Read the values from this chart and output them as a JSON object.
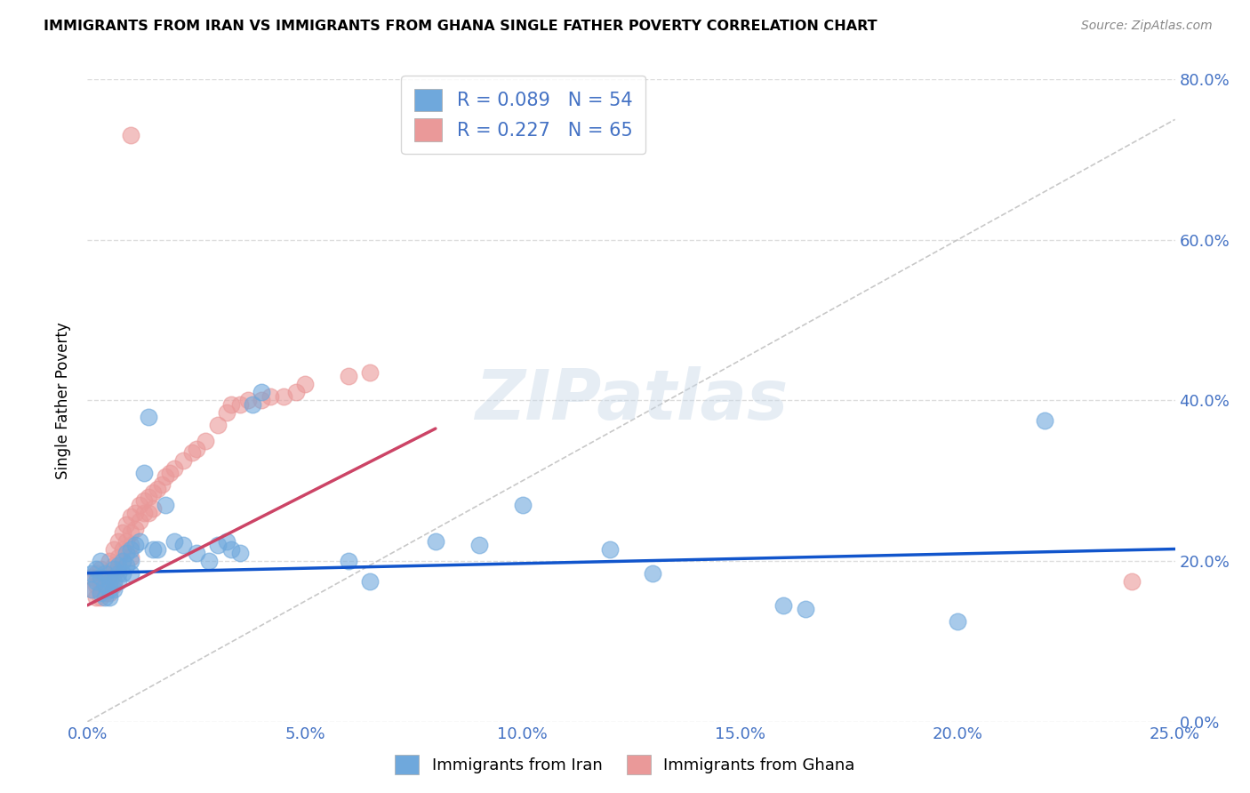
{
  "title": "IMMIGRANTS FROM IRAN VS IMMIGRANTS FROM GHANA SINGLE FATHER POVERTY CORRELATION CHART",
  "source": "Source: ZipAtlas.com",
  "ylabel": "Single Father Poverty",
  "xlim": [
    0,
    0.25
  ],
  "ylim": [
    0,
    0.8
  ],
  "xticks": [
    0.0,
    0.05,
    0.1,
    0.15,
    0.2,
    0.25
  ],
  "yticks": [
    0.0,
    0.2,
    0.4,
    0.6,
    0.8
  ],
  "iran_R": 0.089,
  "iran_N": 54,
  "ghana_R": 0.227,
  "ghana_N": 65,
  "iran_color": "#6fa8dc",
  "ghana_color": "#ea9999",
  "iran_line_color": "#1155cc",
  "ghana_line_color": "#cc4466",
  "ref_line_color": "#bbbbbb",
  "background_color": "#ffffff",
  "grid_color": "#dddddd",
  "iran_x": [
    0.001,
    0.001,
    0.002,
    0.002,
    0.003,
    0.003,
    0.003,
    0.004,
    0.004,
    0.004,
    0.005,
    0.005,
    0.005,
    0.006,
    0.006,
    0.006,
    0.007,
    0.007,
    0.007,
    0.008,
    0.008,
    0.009,
    0.009,
    0.01,
    0.01,
    0.01,
    0.011,
    0.012,
    0.013,
    0.014,
    0.015,
    0.016,
    0.018,
    0.02,
    0.022,
    0.025,
    0.028,
    0.03,
    0.032,
    0.033,
    0.035,
    0.038,
    0.04,
    0.06,
    0.065,
    0.08,
    0.09,
    0.1,
    0.12,
    0.13,
    0.16,
    0.165,
    0.2,
    0.22
  ],
  "iran_y": [
    0.185,
    0.165,
    0.19,
    0.175,
    0.18,
    0.16,
    0.2,
    0.17,
    0.185,
    0.155,
    0.175,
    0.155,
    0.165,
    0.19,
    0.175,
    0.165,
    0.195,
    0.185,
    0.175,
    0.2,
    0.185,
    0.21,
    0.195,
    0.215,
    0.2,
    0.185,
    0.22,
    0.225,
    0.31,
    0.38,
    0.215,
    0.215,
    0.27,
    0.225,
    0.22,
    0.21,
    0.2,
    0.22,
    0.225,
    0.215,
    0.21,
    0.395,
    0.41,
    0.2,
    0.175,
    0.225,
    0.22,
    0.27,
    0.215,
    0.185,
    0.145,
    0.14,
    0.125,
    0.375
  ],
  "ghana_x": [
    0.001,
    0.001,
    0.002,
    0.002,
    0.002,
    0.003,
    0.003,
    0.003,
    0.003,
    0.004,
    0.004,
    0.004,
    0.005,
    0.005,
    0.005,
    0.005,
    0.006,
    0.006,
    0.006,
    0.006,
    0.007,
    0.007,
    0.007,
    0.008,
    0.008,
    0.008,
    0.009,
    0.009,
    0.01,
    0.01,
    0.01,
    0.01,
    0.011,
    0.011,
    0.012,
    0.012,
    0.013,
    0.013,
    0.014,
    0.014,
    0.015,
    0.015,
    0.016,
    0.017,
    0.018,
    0.019,
    0.02,
    0.022,
    0.024,
    0.025,
    0.027,
    0.03,
    0.032,
    0.033,
    0.035,
    0.037,
    0.04,
    0.042,
    0.045,
    0.048,
    0.05,
    0.06,
    0.065,
    0.24,
    0.01
  ],
  "ghana_y": [
    0.18,
    0.165,
    0.185,
    0.17,
    0.155,
    0.19,
    0.175,
    0.165,
    0.155,
    0.18,
    0.17,
    0.16,
    0.2,
    0.185,
    0.17,
    0.16,
    0.215,
    0.195,
    0.185,
    0.17,
    0.225,
    0.205,
    0.19,
    0.235,
    0.215,
    0.2,
    0.245,
    0.225,
    0.255,
    0.235,
    0.22,
    0.205,
    0.26,
    0.24,
    0.27,
    0.25,
    0.275,
    0.26,
    0.28,
    0.26,
    0.285,
    0.265,
    0.29,
    0.295,
    0.305,
    0.31,
    0.315,
    0.325,
    0.335,
    0.34,
    0.35,
    0.37,
    0.385,
    0.395,
    0.395,
    0.4,
    0.4,
    0.405,
    0.405,
    0.41,
    0.42,
    0.43,
    0.435,
    0.175,
    0.73
  ],
  "iran_trend_x": [
    0.0,
    0.25
  ],
  "iran_trend_y": [
    0.185,
    0.215
  ],
  "ghana_trend_x": [
    0.0,
    0.08
  ],
  "ghana_trend_y": [
    0.145,
    0.365
  ],
  "ref_line_x": [
    0.0,
    0.25
  ],
  "ref_line_y": [
    0.0,
    0.75
  ]
}
